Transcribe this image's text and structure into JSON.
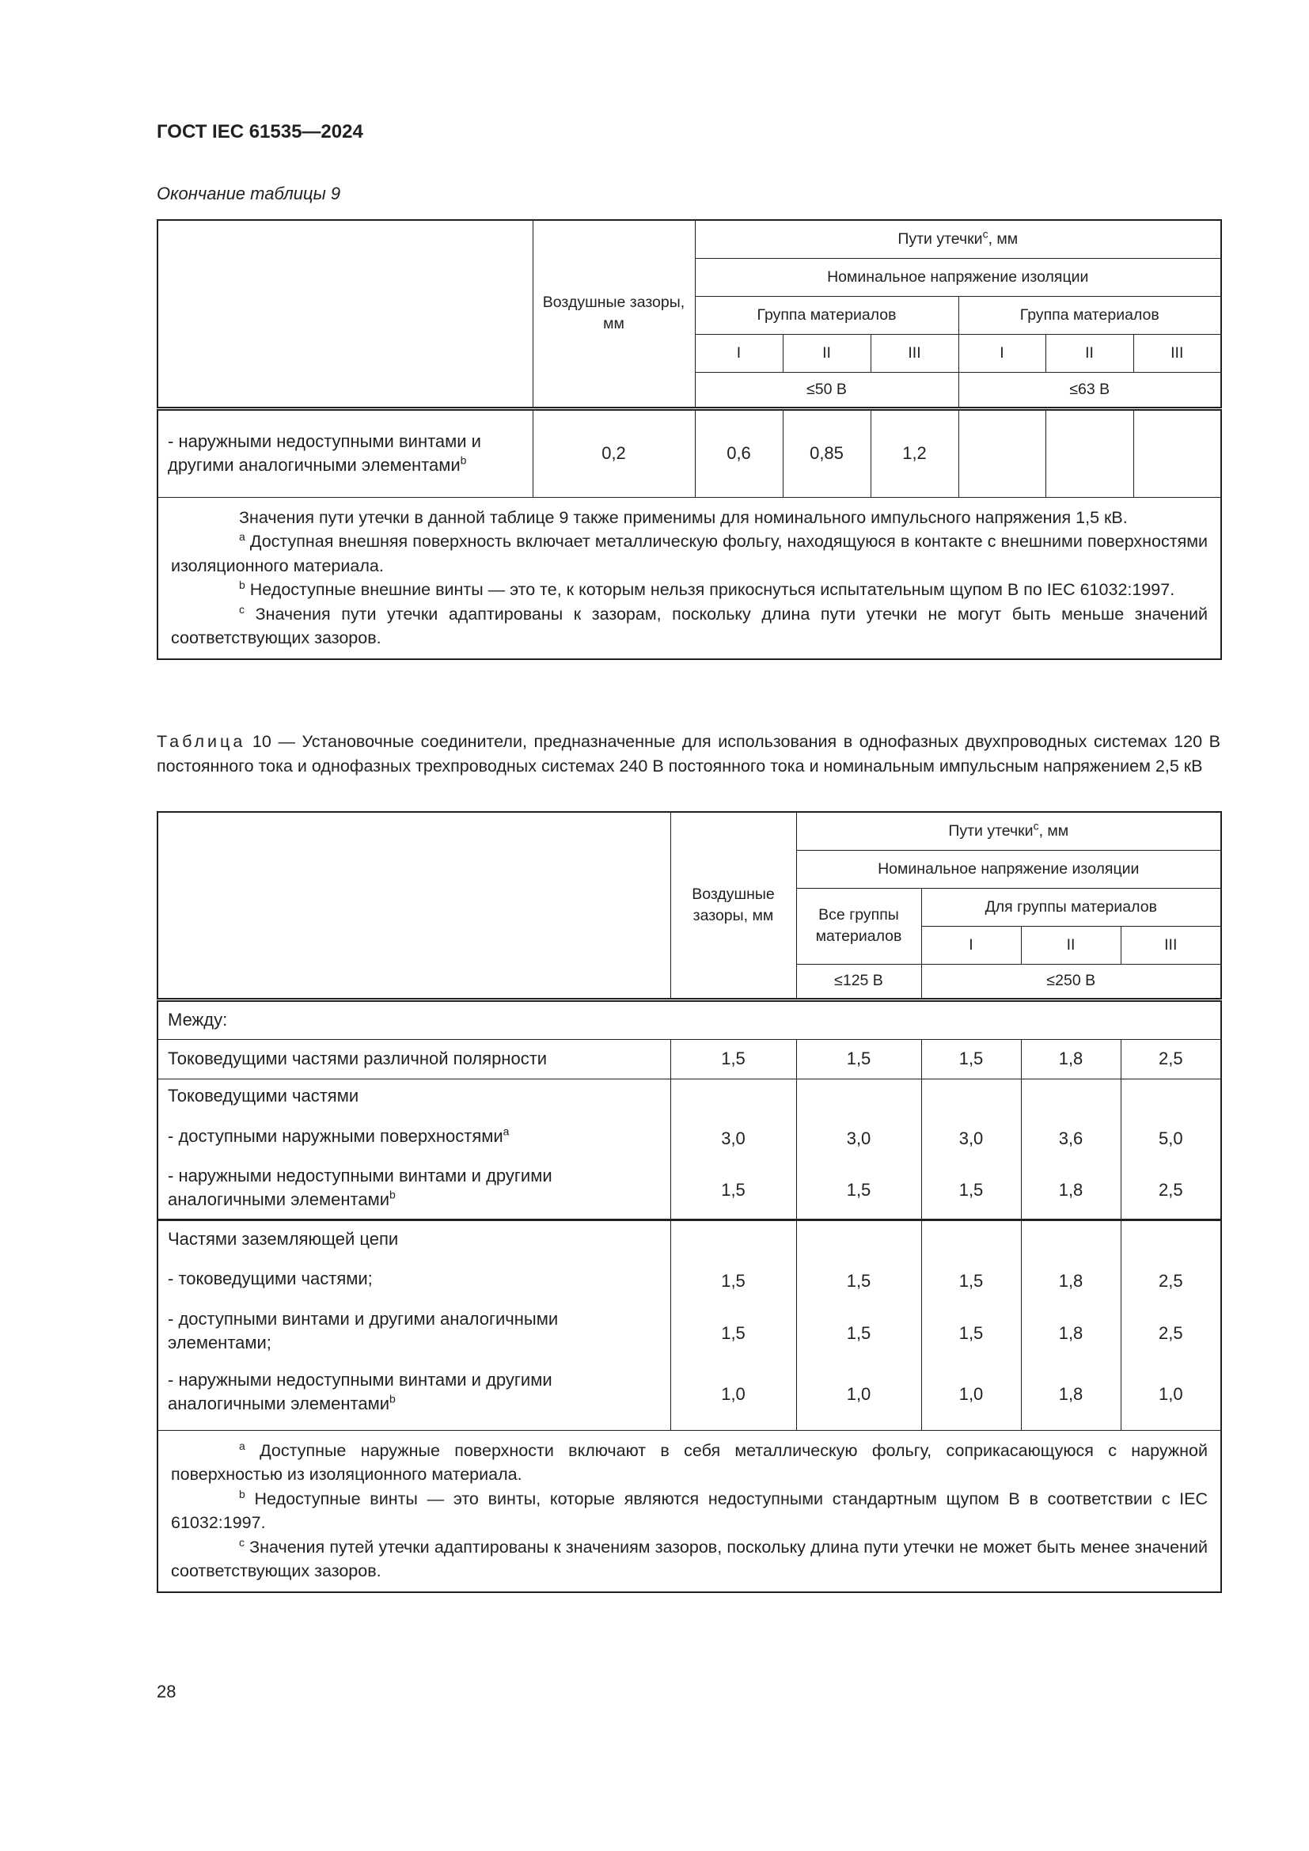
{
  "header": {
    "doc_code": "ГОСТ IEC 61535—2024",
    "continuation": "Окончание таблицы 9"
  },
  "table9": {
    "headers": {
      "air": "Воздушные зазоры, мм",
      "creep": "Пути утечки",
      "creep_sup": "c",
      "creep_unit": ", мм",
      "nominal": "Номинальное напряжение изоляции",
      "group1": "Группа материалов",
      "group2": "Группа материалов",
      "roman": [
        "I",
        "II",
        "III",
        "I",
        "II",
        "III"
      ],
      "v1": "≤50 В",
      "v2": "≤63 В"
    },
    "row": {
      "label": "- наружными недоступными винтами и другими аналогичными элементами",
      "label_sup": "b",
      "values": [
        "0,2",
        "0,6",
        "0,85",
        "1,2",
        "",
        "",
        ""
      ]
    },
    "notes": [
      {
        "sup": "",
        "text": "Значения пути утечки в данной таблице 9 также применимы для номинального импульсного напряжения 1,5 кВ."
      },
      {
        "sup": "a",
        "text": " Доступная внешняя поверхность включает металлическую фольгу, находящуюся в контакте с внешними поверхностями изоляционного материала."
      },
      {
        "sup": "b",
        "text": " Недоступные внешние винты — это те, к которым нельзя прикоснуться испытательным щупом В по IEC 61032:1997."
      },
      {
        "sup": "c",
        "text": " Значения пути утечки адаптированы к зазорам, поскольку длина пути утечки не могут быть меньше значений соответствующих зазоров."
      }
    ]
  },
  "table10": {
    "caption_label": "Таблица",
    "caption_text": " 10 — Установочные соединители, предназначенные для использования в однофазных двухпроводных системах 120 В постоянного тока и однофазных трехпроводных системах 240 В постоянного тока и номинальным импульсным напряжением 2,5 кВ",
    "headers": {
      "air": "Воздушные зазоры, мм",
      "creep": "Пути утечки",
      "creep_sup": "c",
      "creep_unit": ", мм",
      "nominal": "Номинальное напряжение изоляции",
      "all_groups": "Все группы материалов",
      "for_group": "Для группы материалов",
      "roman": [
        "I",
        "II",
        "III"
      ],
      "v1": "≤125 В",
      "v2": "≤250 В"
    },
    "between": "Между:",
    "row1": {
      "label": "Токоведущими частями различной полярности",
      "values": [
        "1,5",
        "1,5",
        "1,5",
        "1,8",
        "2,5"
      ]
    },
    "group2": {
      "title": "Токоведущими частями",
      "rows": [
        {
          "label": "- доступными наружными поверхностями",
          "sup": "a",
          "values": [
            "3,0",
            "3,0",
            "3,0",
            "3,6",
            "5,0"
          ]
        },
        {
          "label": "- наружными недоступными винтами и другими аналогичными элементами",
          "sup": "b",
          "values": [
            "1,5",
            "1,5",
            "1,5",
            "1,8",
            "2,5"
          ]
        }
      ]
    },
    "group3": {
      "title": "Частями заземляющей цепи",
      "rows": [
        {
          "label": "- токоведущими частями;",
          "sup": "",
          "values": [
            "1,5",
            "1,5",
            "1,5",
            "1,8",
            "2,5"
          ]
        },
        {
          "label": "- доступными винтами и другими аналогичными элементами;",
          "sup": "",
          "values": [
            "1,5",
            "1,5",
            "1,5",
            "1,8",
            "2,5"
          ]
        },
        {
          "label": "- наружными недоступными винтами и другими аналогичными элементами",
          "sup": "b",
          "values": [
            "1,0",
            "1,0",
            "1,0",
            "1,8",
            "1,0"
          ]
        }
      ]
    },
    "notes": [
      {
        "sup": "a",
        "text": " Доступные наружные поверхности включают в себя металлическую фольгу, соприкасающуюся с наружной поверхностью из изоляционного материала."
      },
      {
        "sup": "b",
        "text": " Недоступные винты — это винты, которые являются недоступными стандартным щупом В в соответствии с IEC 61032:1997."
      },
      {
        "sup": "c",
        "text": "  Значения путей утечки адаптированы к значениям зазоров, поскольку длина пути утечки не может быть менее значений соответствующих зазоров."
      }
    ]
  },
  "page_number": "28"
}
